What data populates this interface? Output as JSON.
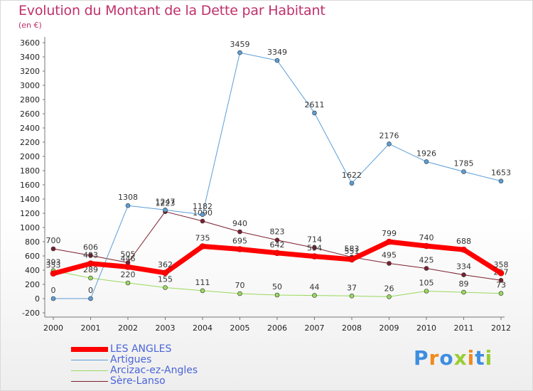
{
  "title": "Evolution du Montant de la Dette par Habitant",
  "subtitle": "(en €)",
  "logo": {
    "letters": [
      "P",
      "r",
      "o",
      "x",
      "i",
      "t",
      "i"
    ],
    "colors": [
      "#3d8ee0",
      "#f08a1f",
      "#3d8ee0",
      "#9acd32",
      "#f08a1f",
      "#3d8ee0",
      "#9acd32"
    ]
  },
  "chart_data": {
    "type": "line",
    "title": "Evolution du Montant de la Dette par Habitant",
    "subtitle": "(en €)",
    "xlabel": "",
    "ylabel": "",
    "categories": [
      "2000",
      "2001",
      "2002",
      "2003",
      "2004",
      "2005",
      "2006",
      "2007",
      "2008",
      "2009",
      "2010",
      "2011",
      "2012"
    ],
    "ylim": [
      -200,
      3600
    ],
    "yticks": [
      -200,
      0,
      200,
      400,
      600,
      800,
      1000,
      1200,
      1400,
      1600,
      1800,
      2000,
      2200,
      2400,
      2600,
      2800,
      3000,
      3200,
      3400,
      3600
    ],
    "grid": false,
    "legend_position": "bottom-left",
    "series": [
      {
        "name": "Sère-Lanso",
        "color": "#7b1f2e",
        "width": 1,
        "values": [
          700,
          606,
          505,
          1223,
          1090,
          940,
          823,
          714,
          583,
          495,
          425,
          334,
          257
        ]
      },
      {
        "name": "Arcizac-ez-Angles",
        "color": "#99d95d",
        "width": 1,
        "values": [
          393,
          289,
          220,
          155,
          111,
          70,
          50,
          44,
          37,
          26,
          105,
          89,
          73
        ]
      },
      {
        "name": "Artigues",
        "color": "#5b9ed8",
        "width": 1,
        "values": [
          0,
          0,
          1308,
          1247,
          1182,
          3459,
          3349,
          2611,
          1622,
          2176,
          1926,
          1785,
          1653
        ]
      },
      {
        "name": "LES ANGLES",
        "color": "#ff0000",
        "width": 7,
        "values": [
          353,
          493,
          446,
          362,
          735,
          695,
          642,
          594,
          551,
          799,
          740,
          688,
          358
        ]
      }
    ],
    "legend_order": [
      "LES ANGLES",
      "Artigues",
      "Arcizac-ez-Angles",
      "Sère-Lanso"
    ]
  }
}
